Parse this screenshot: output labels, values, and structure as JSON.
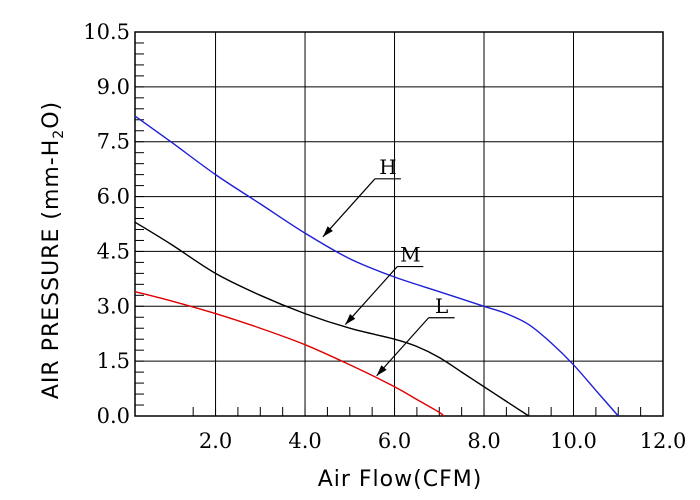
{
  "chart_data": {
    "type": "line",
    "xlabel": "Air Flow(CFM)",
    "ylabel": "AIR PRESSURE (mm-H",
    "ylabel_subscript": "2",
    "ylabel_end": "O)",
    "xlim": [
      0.2,
      12.0
    ],
    "ylim": [
      0.0,
      10.5
    ],
    "x_ticks": [
      2.0,
      4.0,
      6.0,
      8.0,
      10.0,
      12.0
    ],
    "x_tick_labels": [
      "2.0",
      "4.0",
      "6.0",
      "8.0",
      "10.0",
      "12.0"
    ],
    "y_ticks": [
      0.0,
      1.5,
      3.0,
      4.5,
      6.0,
      7.5,
      9.0,
      10.5
    ],
    "y_tick_labels": [
      "0.0",
      "1.5",
      "3.0",
      "4.5",
      "6.0",
      "7.5",
      "9.0",
      "10.5"
    ],
    "grid": true,
    "legend": "none",
    "series": [
      {
        "name": "H",
        "color": "#1f1fd6",
        "x": [
          0.2,
          1.0,
          2.0,
          3.0,
          4.0,
          5.0,
          6.0,
          7.0,
          8.0,
          8.5,
          9.0,
          9.5,
          10.0,
          10.5,
          11.0
        ],
        "y": [
          8.2,
          7.5,
          6.6,
          5.8,
          5.0,
          4.3,
          3.8,
          3.4,
          3.0,
          2.8,
          2.5,
          2.0,
          1.4,
          0.7,
          0.0
        ]
      },
      {
        "name": "M",
        "color": "#000000",
        "x": [
          0.2,
          1.0,
          2.0,
          3.0,
          4.0,
          5.0,
          6.0,
          6.5,
          7.0,
          7.5,
          8.0,
          8.5,
          9.0
        ],
        "y": [
          5.3,
          4.7,
          3.9,
          3.3,
          2.8,
          2.4,
          2.1,
          1.9,
          1.6,
          1.2,
          0.8,
          0.4,
          0.0
        ]
      },
      {
        "name": "L",
        "color": "#e00000",
        "x": [
          0.2,
          1.0,
          2.0,
          3.0,
          4.0,
          5.0,
          6.0,
          6.5,
          7.0,
          7.1
        ],
        "y": [
          3.4,
          3.15,
          2.8,
          2.4,
          1.95,
          1.4,
          0.8,
          0.45,
          0.1,
          0.0
        ]
      }
    ],
    "annotations": [
      {
        "text": "H",
        "series": "H",
        "x": 4.4,
        "y": 4.9
      },
      {
        "text": "M",
        "series": "M",
        "x": 4.9,
        "y": 2.5
      },
      {
        "text": "L",
        "series": "L",
        "x": 5.6,
        "y": 1.1
      }
    ]
  }
}
